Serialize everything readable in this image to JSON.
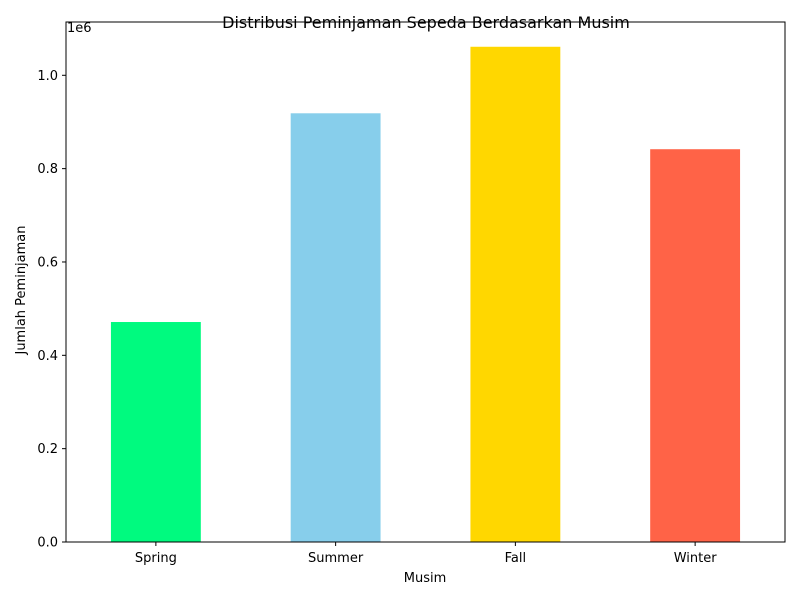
{
  "chart_data": {
    "type": "bar",
    "title": "Distribusi Peminjaman Sepeda Berdasarkan Musim",
    "xlabel": "Musim",
    "ylabel": "Jumlah Peminjaman",
    "y_offset_label": "1e6",
    "categories": [
      "Spring",
      "Summer",
      "Fall",
      "Winter"
    ],
    "values": [
      471348,
      918589,
      1061129,
      841613
    ],
    "colors": [
      "#00FA7F",
      "#87CEEB",
      "#FFD700",
      "#FF6347"
    ],
    "ylim": [
      0,
      1114185
    ],
    "yticks": [
      0,
      200000,
      400000,
      600000,
      800000,
      1000000
    ],
    "ytick_labels": [
      "0.0",
      "0.2",
      "0.4",
      "0.6",
      "0.8",
      "1.0"
    ],
    "grid": false,
    "legend": "none"
  }
}
